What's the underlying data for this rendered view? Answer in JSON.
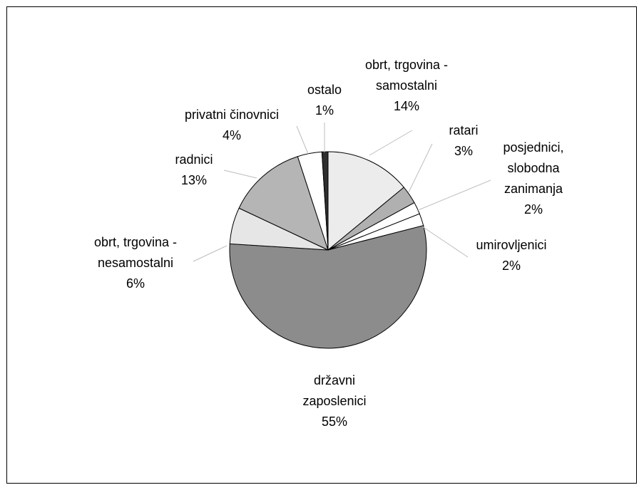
{
  "chart_data": {
    "type": "pie",
    "title": "",
    "legend": "none",
    "slices": [
      {
        "label_lines": [
          "obrt, trgovina -",
          "samostalni"
        ],
        "pct_label": "14%",
        "value": 14,
        "color": "#ececec"
      },
      {
        "label_lines": [
          "ratari"
        ],
        "pct_label": "3%",
        "value": 3,
        "color": "#b0b0b0"
      },
      {
        "label_lines": [
          "posjednici,",
          "slobodna",
          "zanimanja"
        ],
        "pct_label": "2%",
        "value": 2,
        "color": "#ffffff"
      },
      {
        "label_lines": [
          "umirovljenici"
        ],
        "pct_label": "2%",
        "value": 2,
        "color": "#ffffff"
      },
      {
        "label_lines": [
          "državni",
          "zaposlenici"
        ],
        "pct_label": "55%",
        "value": 55,
        "color": "#8c8c8c"
      },
      {
        "label_lines": [
          "obrt, trgovina -",
          "nesamostalni"
        ],
        "pct_label": "6%",
        "value": 6,
        "color": "#e6e6e6"
      },
      {
        "label_lines": [
          "radnici"
        ],
        "pct_label": "13%",
        "value": 13,
        "color": "#b5b5b5"
      },
      {
        "label_lines": [
          "privatni činovnici"
        ],
        "pct_label": "4%",
        "value": 4,
        "color": "#ffffff"
      },
      {
        "label_lines": [
          "ostalo"
        ],
        "pct_label": "1%",
        "value": 1,
        "color": "#2e2e2e"
      }
    ]
  }
}
